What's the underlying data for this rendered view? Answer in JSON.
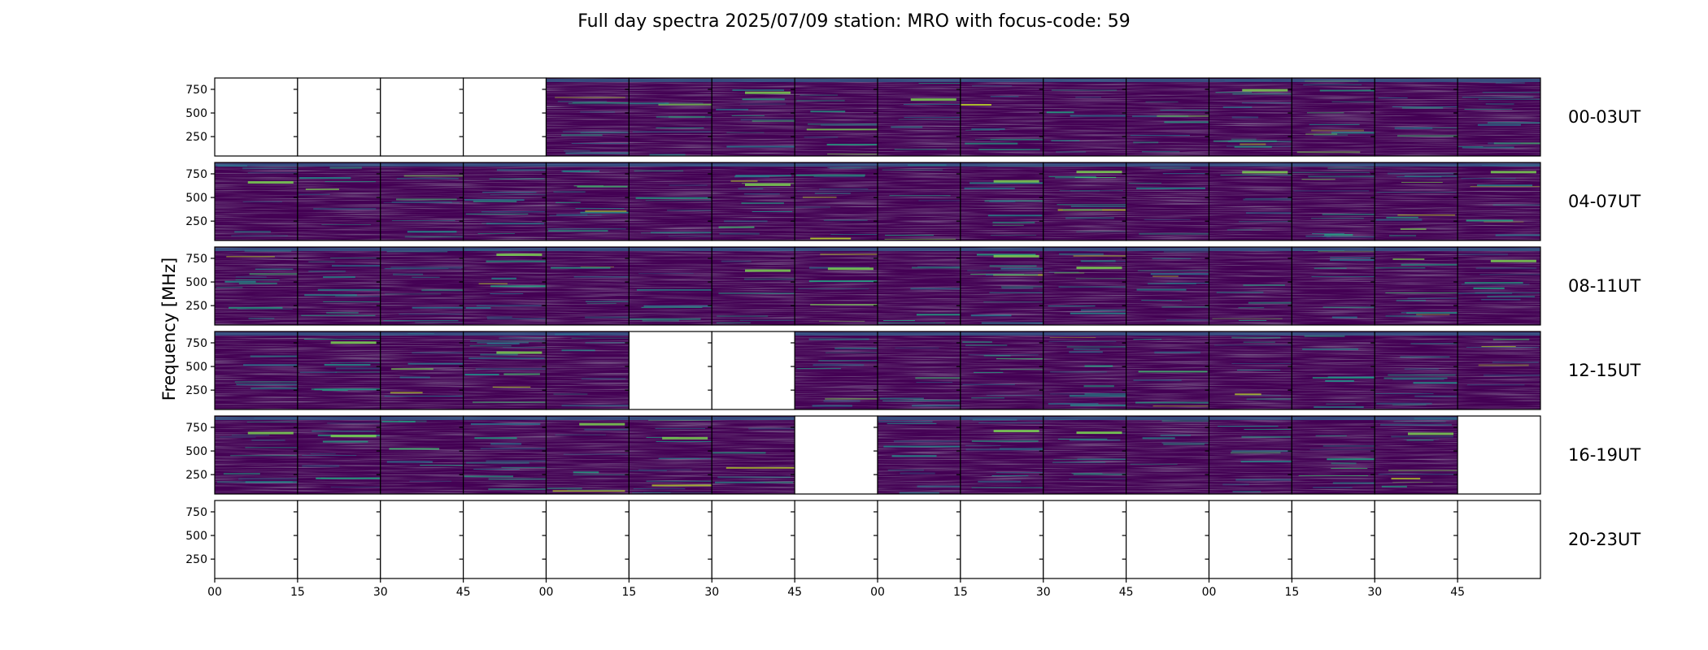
{
  "chart_data": {
    "type": "heatmap",
    "title": "Full day spectra 2025/07/09 station: MRO with focus-code: 59",
    "ylabel": "Frequency [MHz]",
    "colormap": "viridis",
    "y_range": [
      45,
      870
    ],
    "y_ticks": [
      "250",
      "500",
      "750"
    ],
    "y_tick_values": [
      250,
      500,
      750
    ],
    "x_ticks": [
      "00",
      "15",
      "30",
      "45",
      "00",
      "15",
      "30",
      "45",
      "00",
      "15",
      "30",
      "45",
      "00",
      "15",
      "30",
      "45"
    ],
    "rows": [
      {
        "label": "00-03UT",
        "has_data": [
          0,
          0,
          0,
          0,
          1,
          1,
          1,
          1,
          1,
          1,
          1,
          1,
          1,
          1,
          1,
          1
        ]
      },
      {
        "label": "04-07UT",
        "has_data": [
          1,
          1,
          1,
          1,
          1,
          1,
          1,
          1,
          1,
          1,
          1,
          1,
          1,
          1,
          1,
          1
        ]
      },
      {
        "label": "08-11UT",
        "has_data": [
          1,
          1,
          1,
          1,
          1,
          1,
          1,
          1,
          1,
          1,
          1,
          1,
          1,
          1,
          1,
          1
        ]
      },
      {
        "label": "12-15UT",
        "has_data": [
          1,
          1,
          1,
          1,
          1,
          0,
          0,
          1,
          1,
          1,
          1,
          1,
          1,
          1,
          1,
          1
        ]
      },
      {
        "label": "16-19UT",
        "has_data": [
          1,
          1,
          1,
          1,
          1,
          1,
          1,
          0,
          1,
          1,
          1,
          1,
          1,
          1,
          1,
          0
        ]
      },
      {
        "label": "20-23UT",
        "has_data": [
          0,
          0,
          0,
          0,
          0,
          0,
          0,
          0,
          0,
          0,
          0,
          0,
          0,
          0,
          0,
          0
        ]
      }
    ]
  }
}
